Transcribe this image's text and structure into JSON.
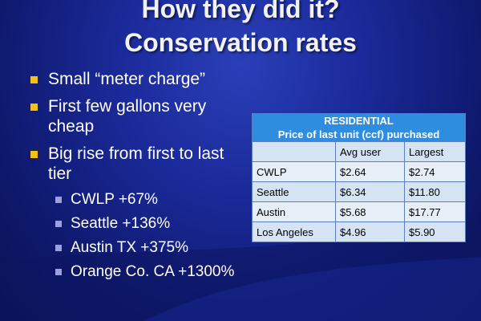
{
  "slide": {
    "title_line1": "How they did it?",
    "title_line2": "Conservation rates"
  },
  "bullets": [
    {
      "text": "Small “meter charge”"
    },
    {
      "text": "First few gallons very cheap"
    },
    {
      "text": "Big rise from first to last tier"
    }
  ],
  "sub_bullets": [
    {
      "text": "CWLP +67%"
    },
    {
      "text": "Seattle +136%"
    },
    {
      "text": "Austin TX +375%"
    },
    {
      "text": "Orange Co. CA +1300%"
    }
  ],
  "table": {
    "header_line1": "RESIDENTIAL",
    "header_line2": "Price of last unit (ccf) purchased",
    "columns": [
      "",
      "Avg user",
      "Largest"
    ],
    "rows": [
      {
        "name": "CWLP",
        "avg": "$2.64",
        "largest": "$2.74"
      },
      {
        "name": "Seattle",
        "avg": "$6.34",
        "largest": "$11.80"
      },
      {
        "name": "Austin",
        "avg": "$5.68",
        "largest": "$17.77"
      },
      {
        "name": "Los Angeles",
        "avg": "$4.96",
        "largest": "$5.90"
      }
    ]
  },
  "colors": {
    "background": "#1b2a9a",
    "bullet_yellow": "#f3c21a",
    "sub_bullet": "#9aa0e0",
    "table_header": "#2f8de0",
    "table_body": "#d6e3f3"
  },
  "icons": {
    "bullet": "square-bullet-icon",
    "sub_bullet": "small-square-bullet-icon"
  }
}
